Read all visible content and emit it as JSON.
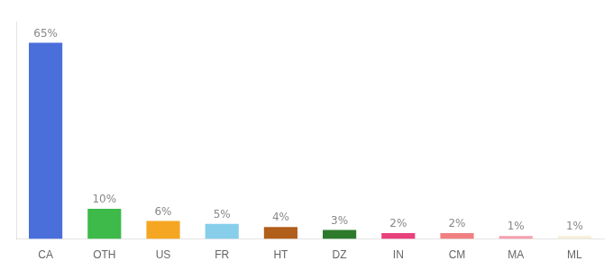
{
  "chart_data": {
    "type": "bar",
    "categories": [
      "CA",
      "OTH",
      "US",
      "FR",
      "HT",
      "DZ",
      "IN",
      "CM",
      "MA",
      "ML"
    ],
    "values": [
      65,
      10,
      6,
      5,
      4,
      3,
      2,
      2,
      1,
      1
    ],
    "value_labels": [
      "65%",
      "10%",
      "6%",
      "5%",
      "4%",
      "3%",
      "2%",
      "2%",
      "1%",
      "1%"
    ],
    "colors": [
      "#4a6fdb",
      "#3dba4a",
      "#f5a623",
      "#87ceeb",
      "#b05e1a",
      "#2d7a2d",
      "#e8407a",
      "#f08080",
      "#f4a0b0",
      "#f5f0d8"
    ],
    "ylim": [
      0,
      72
    ],
    "grid": false,
    "data_labels": true,
    "tick_labels": "x"
  }
}
